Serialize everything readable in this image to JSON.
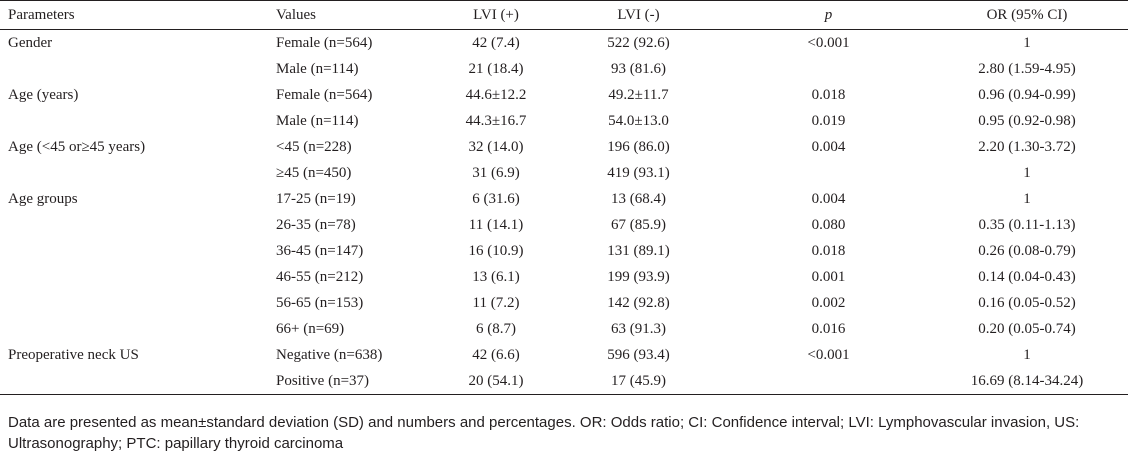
{
  "table": {
    "headers": [
      "Parameters",
      "Values",
      "LVI (+)",
      "LVI (-)",
      "p",
      "OR (95% CI)"
    ],
    "rows": [
      {
        "param": "Gender",
        "value": "Female (n=564)",
        "pos": "42 (7.4)",
        "neg": "522 (92.6)",
        "p": "<0.001",
        "or": "1"
      },
      {
        "param": "",
        "value": "Male (n=114)",
        "pos": "21 (18.4)",
        "neg": "93 (81.6)",
        "p": "",
        "or": "2.80 (1.59-4.95)"
      },
      {
        "param": "Age (years)",
        "value": "Female (n=564)",
        "pos": "44.6±12.2",
        "neg": "49.2±11.7",
        "p": "0.018",
        "or": "0.96 (0.94-0.99)"
      },
      {
        "param": "",
        "value": "Male (n=114)",
        "pos": "44.3±16.7",
        "neg": "54.0±13.0",
        "p": "0.019",
        "or": "0.95 (0.92-0.98)"
      },
      {
        "param": "Age (<45 or≥45 years)",
        "value": "<45 (n=228)",
        "pos": "32 (14.0)",
        "neg": "196 (86.0)",
        "p": "0.004",
        "or": "2.20 (1.30-3.72)"
      },
      {
        "param": "",
        "value": "≥45 (n=450)",
        "pos": "31 (6.9)",
        "neg": "419 (93.1)",
        "p": "",
        "or": "1"
      },
      {
        "param": "Age groups",
        "value": "17-25 (n=19)",
        "pos": "6 (31.6)",
        "neg": "13 (68.4)",
        "p": "0.004",
        "or": "1"
      },
      {
        "param": "",
        "value": "26-35 (n=78)",
        "pos": "11 (14.1)",
        "neg": "67 (85.9)",
        "p": "0.080",
        "or": "0.35 (0.11-1.13)"
      },
      {
        "param": "",
        "value": "36-45 (n=147)",
        "pos": "16 (10.9)",
        "neg": "131 (89.1)",
        "p": "0.018",
        "or": "0.26 (0.08-0.79)"
      },
      {
        "param": "",
        "value": "46-55 (n=212)",
        "pos": "13 (6.1)",
        "neg": "199 (93.9)",
        "p": "0.001",
        "or": "0.14 (0.04-0.43)"
      },
      {
        "param": "",
        "value": "56-65 (n=153)",
        "pos": "11 (7.2)",
        "neg": "142 (92.8)",
        "p": "0.002",
        "or": "0.16 (0.05-0.52)"
      },
      {
        "param": "",
        "value": "66+ (n=69)",
        "pos": "6 (8.7)",
        "neg": "63 (91.3)",
        "p": "0.016",
        "or": "0.20 (0.05-0.74)"
      },
      {
        "param": "Preoperative neck US",
        "value": "Negative (n=638)",
        "pos": "42 (6.6)",
        "neg": "596 (93.4)",
        "p": "<0.001",
        "or": "1"
      },
      {
        "param": "",
        "value": "Positive (n=37)",
        "pos": "20 (54.1)",
        "neg": "17 (45.9)",
        "p": "",
        "or": "16.69 (8.14-34.24)"
      }
    ]
  },
  "footnote": "Data are presented as mean±standard deviation (SD) and numbers and percentages. OR: Odds ratio; CI: Confidence interval; LVI: Lymphovascular invasion, US: Ultrasonography; PTC: papillary thyroid carcinoma"
}
